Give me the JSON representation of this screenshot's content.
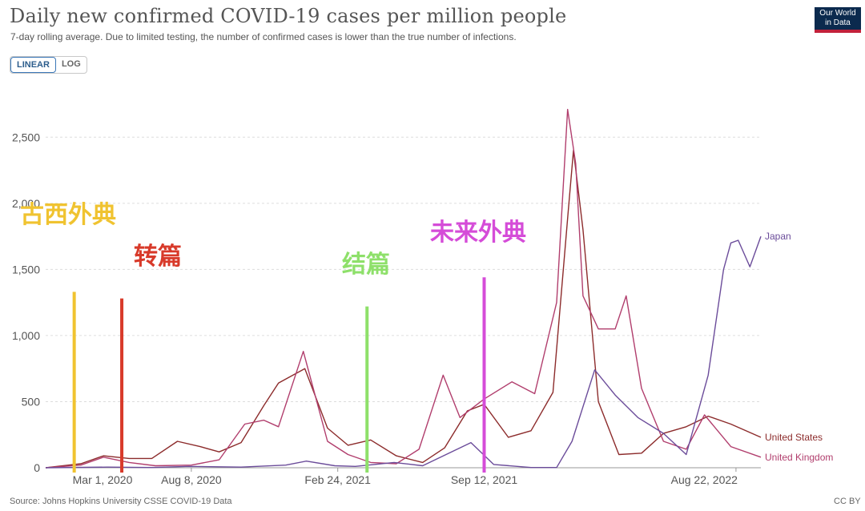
{
  "header": {
    "title": "Daily new confirmed COVID-19 cases per million people",
    "subtitle": "7-day rolling average. Due to limited testing, the number of confirmed cases is lower than the true number of infections.",
    "scale_options": [
      "LINEAR",
      "LOG"
    ],
    "selected_scale": "LINEAR",
    "logo_line1": "Our World",
    "logo_line2": "in Data"
  },
  "footer": {
    "source": "Source: Johns Hopkins University CSSE COVID-19 Data",
    "license": "CC BY"
  },
  "chart_data": {
    "type": "line",
    "title": "Daily new confirmed COVID-19 cases per million people",
    "xlabel": "",
    "ylabel": "",
    "x_ticks": [
      "Mar 1, 2020",
      "Aug 8, 2020",
      "Feb 24, 2021",
      "Sep 12, 2021",
      "Aug 22, 2022"
    ],
    "x_range": [
      "2020-01-22",
      "2022-09-25"
    ],
    "ylim": [
      0,
      2750
    ],
    "y_ticks": [
      0,
      500,
      1000,
      1500,
      2000,
      2500
    ],
    "y_tick_labels": [
      "0",
      "500",
      "1,000",
      "1,500",
      "2,000",
      "2,500"
    ],
    "grid": "horizontal dashed",
    "series": [
      {
        "name": "United States",
        "color": "#8c2b2b",
        "x": [
          "2020-01-22",
          "2020-03-10",
          "2020-04-10",
          "2020-05-15",
          "2020-06-15",
          "2020-07-20",
          "2020-08-20",
          "2020-09-15",
          "2020-10-15",
          "2020-11-15",
          "2020-12-05",
          "2021-01-10",
          "2021-02-10",
          "2021-03-10",
          "2021-04-10",
          "2021-05-15",
          "2021-06-20",
          "2021-07-20",
          "2021-08-20",
          "2021-09-12",
          "2021-10-15",
          "2021-11-15",
          "2021-12-15",
          "2022-01-05",
          "2022-01-12",
          "2022-01-25",
          "2022-02-15",
          "2022-03-15",
          "2022-04-15",
          "2022-05-15",
          "2022-06-15",
          "2022-07-15",
          "2022-08-15",
          "2022-09-25"
        ],
        "y": [
          0,
          30,
          90,
          70,
          70,
          200,
          160,
          120,
          190,
          470,
          640,
          750,
          300,
          170,
          210,
          90,
          40,
          150,
          430,
          480,
          230,
          280,
          570,
          1950,
          2400,
          1800,
          500,
          100,
          110,
          260,
          310,
          390,
          330,
          230
        ]
      },
      {
        "name": "United Kingdom",
        "color": "#b13e6d",
        "x": [
          "2020-01-22",
          "2020-03-10",
          "2020-04-10",
          "2020-05-15",
          "2020-06-20",
          "2020-08-08",
          "2020-09-15",
          "2020-10-20",
          "2020-11-15",
          "2020-12-05",
          "2021-01-08",
          "2021-02-10",
          "2021-03-10",
          "2021-04-10",
          "2021-05-15",
          "2021-06-15",
          "2021-07-18",
          "2021-08-10",
          "2021-09-12",
          "2021-10-20",
          "2021-11-20",
          "2021-12-20",
          "2022-01-04",
          "2022-01-15",
          "2022-01-25",
          "2022-02-15",
          "2022-03-10",
          "2022-03-25",
          "2022-04-15",
          "2022-05-15",
          "2022-06-15",
          "2022-07-10",
          "2022-08-15",
          "2022-09-25"
        ],
        "y": [
          0,
          20,
          80,
          40,
          15,
          20,
          60,
          330,
          360,
          310,
          880,
          200,
          100,
          40,
          30,
          140,
          700,
          380,
          520,
          650,
          560,
          1250,
          2710,
          2300,
          1300,
          1050,
          1050,
          1300,
          600,
          200,
          140,
          400,
          160,
          80
        ]
      },
      {
        "name": "Japan",
        "color": "#6b4c9a",
        "x": [
          "2020-01-22",
          "2020-04-15",
          "2020-06-15",
          "2020-08-05",
          "2020-10-15",
          "2020-12-15",
          "2021-01-12",
          "2021-02-20",
          "2021-03-20",
          "2021-05-12",
          "2021-06-20",
          "2021-08-25",
          "2021-09-25",
          "2021-11-15",
          "2021-12-20",
          "2022-01-10",
          "2022-02-10",
          "2022-03-10",
          "2022-04-10",
          "2022-05-15",
          "2022-06-15",
          "2022-07-15",
          "2022-08-05",
          "2022-08-15",
          "2022-08-25",
          "2022-09-10",
          "2022-09-25"
        ],
        "y": [
          0,
          5,
          2,
          10,
          5,
          20,
          50,
          15,
          10,
          40,
          15,
          190,
          25,
          2,
          2,
          200,
          740,
          550,
          380,
          260,
          100,
          700,
          1500,
          1700,
          1720,
          1520,
          1750
        ]
      }
    ],
    "annotations": [
      {
        "text": "古西外典",
        "color": "#f0c330",
        "line_date": "2020-03-01",
        "line_top_value": 1330
      },
      {
        "text": "转篇",
        "color": "#d83a2a",
        "line_date": "2020-05-05",
        "line_top_value": 1280
      },
      {
        "text": "结篇",
        "color": "#8ee06a",
        "line_date": "2021-04-05",
        "line_top_value": 1220
      },
      {
        "text": "未来外典",
        "color": "#d54cd8",
        "line_date": "2021-09-12",
        "line_top_value": 1440
      }
    ]
  }
}
